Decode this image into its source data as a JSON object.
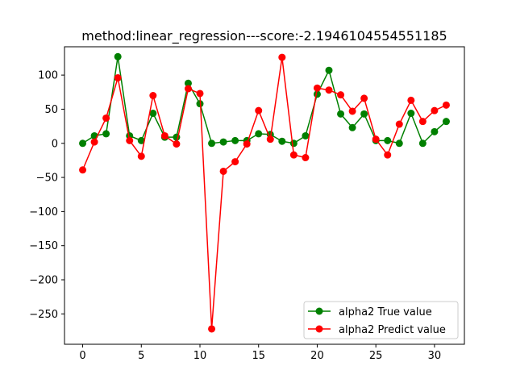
{
  "chart_data": {
    "type": "line",
    "title": "method:linear_regression---score:-2.1946104554551185",
    "xlabel": "",
    "ylabel": "",
    "xlim": [
      -1.55,
      32.55
    ],
    "ylim": [
      -294.5,
      141.5
    ],
    "x_ticks": [
      0,
      5,
      10,
      15,
      20,
      25,
      30
    ],
    "y_ticks": [
      100,
      50,
      0,
      -50,
      -100,
      -150,
      -200,
      -250
    ],
    "grid": false,
    "legend_position": "lower-right",
    "x": [
      0,
      1,
      2,
      3,
      4,
      5,
      6,
      7,
      8,
      9,
      10,
      11,
      12,
      13,
      14,
      15,
      16,
      17,
      18,
      19,
      20,
      21,
      22,
      23,
      24,
      25,
      26,
      27,
      28,
      29,
      30,
      31
    ],
    "series": [
      {
        "name": "alpha2 True value",
        "color": "#008000",
        "marker": "circle",
        "values": [
          0,
          11,
          14,
          127,
          11,
          4,
          44,
          9,
          9,
          88,
          58,
          0,
          2,
          4,
          4,
          14,
          13,
          3,
          0,
          11,
          72,
          107,
          43,
          23,
          43,
          4,
          4,
          0,
          44,
          0,
          17,
          32
        ]
      },
      {
        "name": "alpha2 Predict value",
        "color": "#ff0000",
        "marker": "circle",
        "values": [
          -39,
          2,
          37,
          96,
          4,
          -19,
          70,
          11,
          -1,
          80,
          73,
          -272,
          -41,
          -27,
          -1,
          48,
          6,
          126,
          -17,
          -21,
          81,
          78,
          71,
          47,
          66,
          6,
          -17,
          28,
          63,
          32,
          48,
          56
        ]
      }
    ]
  }
}
